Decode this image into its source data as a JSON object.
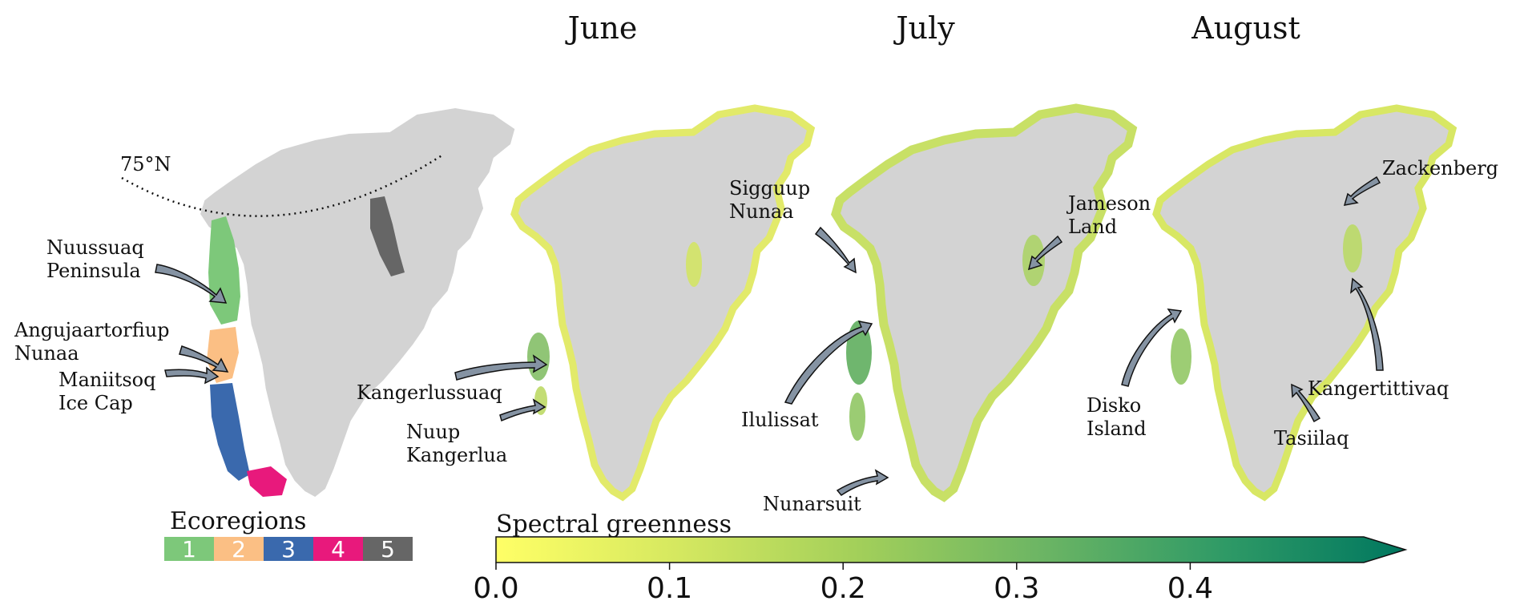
{
  "panels": [
    {
      "id": "ecoregions",
      "title": ""
    },
    {
      "id": "june",
      "title": "June"
    },
    {
      "id": "july",
      "title": "July"
    },
    {
      "id": "august",
      "title": "August"
    }
  ],
  "latitude_label": "75°N",
  "ecoregions": {
    "title": "Ecoregions",
    "items": [
      {
        "label": "1",
        "color": "#7dc87a"
      },
      {
        "label": "2",
        "color": "#fbbf84"
      },
      {
        "label": "3",
        "color": "#3a69ad"
      },
      {
        "label": "4",
        "color": "#e8197c"
      },
      {
        "label": "5",
        "color": "#666666"
      }
    ]
  },
  "place_labels": {
    "nuussuaq": [
      "Nuussuaq",
      "Peninsula"
    ],
    "angujaartorfiup": [
      "Angujaartorfiup",
      "Nunaa"
    ],
    "maniitsoq": [
      "Maniitsoq",
      "Ice Cap"
    ],
    "kangerlussuaq": [
      "Kangerlussuaq"
    ],
    "nuup": [
      "Nuup",
      "Kangerlua"
    ],
    "sigguup": [
      "Sigguup",
      "Nunaa"
    ],
    "jameson": [
      "Jameson",
      "Land"
    ],
    "ilulissat": [
      "Ilulissat"
    ],
    "nunarsuit": [
      "Nunarsuit"
    ],
    "zackenberg": [
      "Zackenberg"
    ],
    "disko": [
      "Disko",
      "Island"
    ],
    "kangertittivaq": [
      "Kangertittivaq"
    ],
    "tasiilaq": [
      "Tasiilaq"
    ]
  },
  "colorbar": {
    "title": "Spectral greenness",
    "min": 0.0,
    "max": 0.5,
    "ticks": [
      "0.0",
      "0.1",
      "0.2",
      "0.3",
      "0.4"
    ],
    "colors": [
      "#ffff66",
      "#d5e860",
      "#a2cf5a",
      "#6cb564",
      "#2f9a66",
      "#00775f"
    ],
    "extend": "max"
  },
  "colors": {
    "ice": "#d3d3d3",
    "text": "#111111",
    "arrow_fill": "#8593a3"
  }
}
